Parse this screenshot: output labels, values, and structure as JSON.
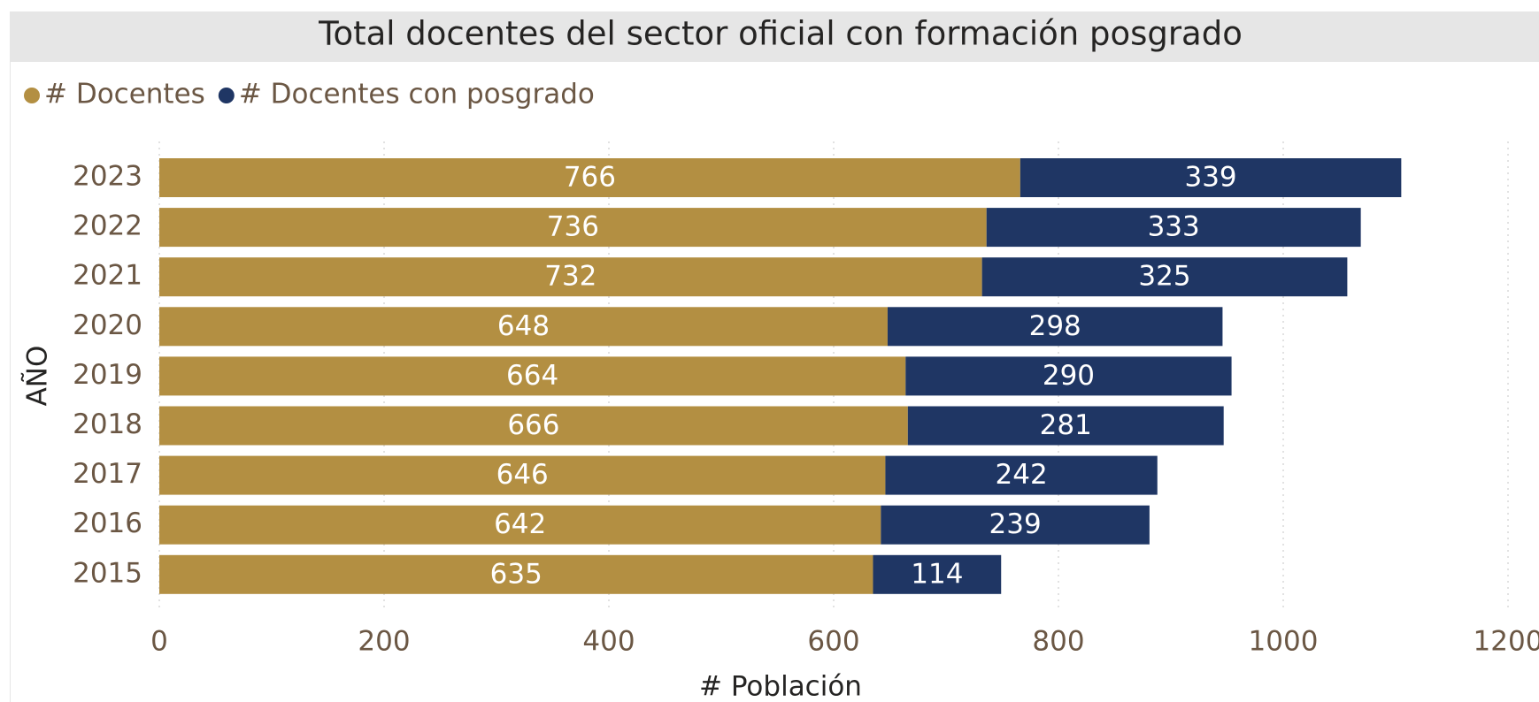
{
  "chart_data": {
    "type": "stacked_bar_horizontal",
    "title": "Total docentes del sector oficial con formación posgrado",
    "x_label": "# Población",
    "y_label": "AÑO",
    "categories": [
      "2023",
      "2022",
      "2021",
      "2020",
      "2019",
      "2018",
      "2017",
      "2016",
      "2015"
    ],
    "series": [
      {
        "name": "# Docentes",
        "color": "#b38f42",
        "values": [
          766,
          736,
          732,
          648,
          664,
          666,
          646,
          642,
          635
        ]
      },
      {
        "name": "# Docentes con posgrado",
        "color": "#1f3664",
        "values": [
          339,
          333,
          325,
          298,
          290,
          281,
          242,
          239,
          114
        ]
      }
    ],
    "xlim": [
      0,
      1200
    ],
    "xticks": [
      0,
      200,
      400,
      600,
      800,
      1000,
      1200
    ],
    "grid": true,
    "legend": "top-left"
  }
}
